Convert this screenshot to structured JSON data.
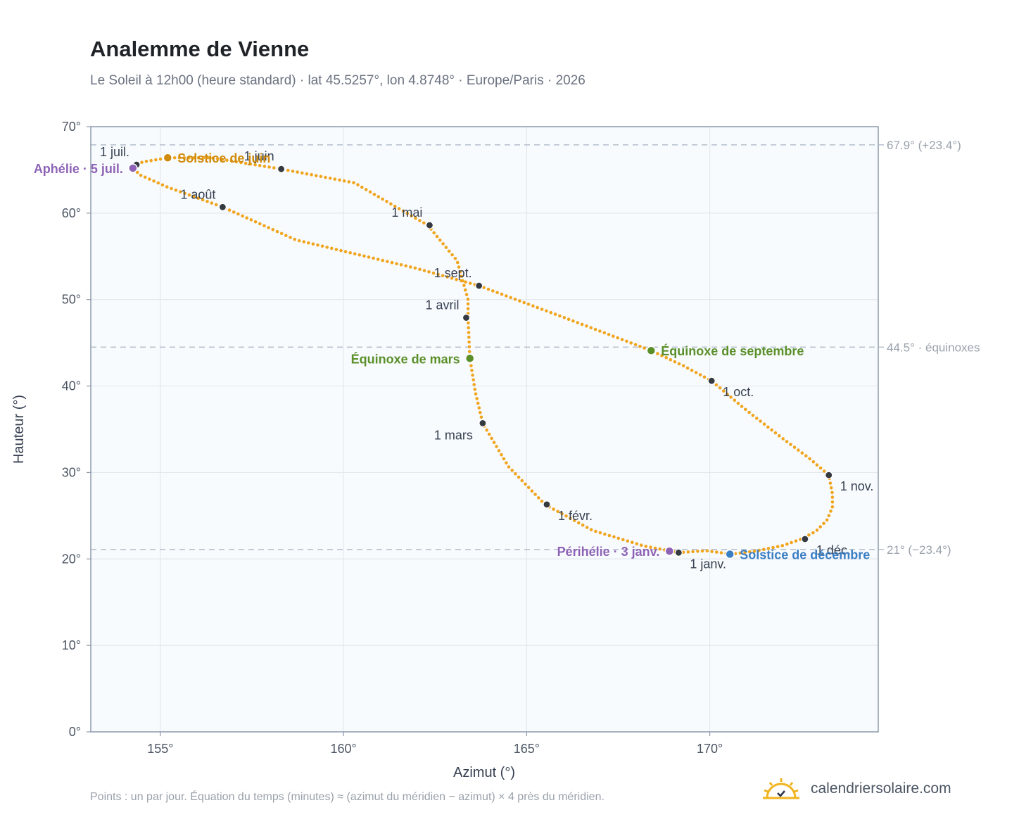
{
  "header": {
    "title": "Analemme de Vienne",
    "subtitle": "Le Soleil à 12h00 (heure standard) · lat 45.5257°, lon 4.8748° · Europe/Paris · 2026"
  },
  "footer": {
    "note": "Points : un par jour. Équation du temps (minutes) ≈ (azimut du méridien − azimut) × 4 près du méridien.",
    "brand": "calendriersolaire.com"
  },
  "colors": {
    "curve": "#f0a51e",
    "month_marker": "#343a40",
    "equinox": "#5a8f29",
    "june_solstice": "#d08b0c",
    "december_solstice": "#3a7ec4",
    "perihelion_aphelion": "#8e63b6",
    "plot_bg": "#f8fbfe",
    "grid": "#e3e8ee",
    "axis": "#8e9aab",
    "reference_line": "#b9c4d0"
  },
  "chart_data": {
    "type": "scatter",
    "xlabel": "Azimut (°)",
    "ylabel": "Hauteur (°)",
    "xlim": [
      153.1,
      174.6
    ],
    "ylim": [
      0,
      70
    ],
    "x_ticks": [
      155,
      160,
      165,
      170
    ],
    "x_tick_labels": [
      "155°",
      "160°",
      "165°",
      "170°"
    ],
    "y_ticks": [
      0,
      10,
      20,
      30,
      40,
      50,
      60,
      70
    ],
    "y_tick_labels": [
      "0°",
      "10°",
      "20°",
      "30°",
      "40°",
      "50°",
      "60°",
      "70°"
    ],
    "grid": true,
    "reference_lines": [
      {
        "y": 67.9,
        "label": "67.9° (+23.4°)"
      },
      {
        "y": 44.5,
        "label": "44.5° · équinoxes"
      },
      {
        "y": 21.1,
        "label": "21° (−23.4°)"
      }
    ],
    "series_path": [
      [
        169.15,
        20.73
      ],
      [
        169.9,
        20.95
      ],
      [
        170.6,
        20.55
      ],
      [
        171.3,
        20.95
      ],
      [
        172.0,
        21.55
      ],
      [
        172.5,
        22.3
      ],
      [
        172.9,
        23.2
      ],
      [
        173.2,
        24.5
      ],
      [
        173.35,
        26.0
      ],
      [
        173.35,
        27.5
      ],
      [
        173.25,
        29.7
      ],
      [
        172.7,
        31.7
      ],
      [
        172.0,
        33.9
      ],
      [
        171.0,
        37.2
      ],
      [
        170.05,
        40.6
      ],
      [
        169.3,
        42.3
      ],
      [
        168.4,
        44.1
      ],
      [
        166.1,
        47.8
      ],
      [
        163.7,
        51.6
      ],
      [
        162.0,
        53.6
      ],
      [
        158.7,
        56.9
      ],
      [
        156.7,
        60.7
      ],
      [
        155.2,
        63.0
      ],
      [
        154.4,
        64.5
      ],
      [
        154.3,
        65.3
      ],
      [
        154.5,
        65.9
      ],
      [
        155.2,
        66.4
      ],
      [
        156.4,
        66.4
      ],
      [
        158.3,
        65.1
      ],
      [
        160.3,
        63.5
      ],
      [
        162.3,
        58.6
      ],
      [
        163.1,
        54.5
      ],
      [
        163.4,
        50.0
      ],
      [
        163.4,
        47.9
      ],
      [
        163.45,
        43.2
      ],
      [
        163.6,
        39.3
      ],
      [
        163.8,
        35.7
      ],
      [
        164.5,
        30.7
      ],
      [
        165.5,
        26.3
      ],
      [
        166.8,
        23.3
      ],
      [
        168.2,
        21.5
      ],
      [
        169.15,
        20.73
      ]
    ],
    "month_markers": [
      {
        "label": "1 janv.",
        "x": 169.15,
        "y": 20.73,
        "anchor": "below-right"
      },
      {
        "label": "1 févr.",
        "x": 165.55,
        "y": 26.3,
        "anchor": "below-right"
      },
      {
        "label": "1 mars",
        "x": 163.8,
        "y": 35.7,
        "anchor": "below-left"
      },
      {
        "label": "1 avril",
        "x": 163.35,
        "y": 47.9,
        "anchor": "above-left"
      },
      {
        "label": "1 mai",
        "x": 162.35,
        "y": 58.6,
        "anchor": "above-left"
      },
      {
        "label": "1 juin",
        "x": 158.3,
        "y": 65.1,
        "anchor": "above-left"
      },
      {
        "label": "1 juil.",
        "x": 154.35,
        "y": 65.6,
        "anchor": "above-left"
      },
      {
        "label": "1 août",
        "x": 156.7,
        "y": 60.7,
        "anchor": "above-left"
      },
      {
        "label": "1 sept.",
        "x": 163.7,
        "y": 51.6,
        "anchor": "above-left"
      },
      {
        "label": "1 oct.",
        "x": 170.05,
        "y": 40.6,
        "anchor": "below-right"
      },
      {
        "label": "1 nov.",
        "x": 173.25,
        "y": 29.7,
        "anchor": "below-right"
      },
      {
        "label": "1 déc.",
        "x": 172.6,
        "y": 22.3,
        "anchor": "below-right"
      }
    ],
    "events": [
      {
        "label": "Solstice de juin",
        "x": 155.2,
        "y": 66.4,
        "color": "#d08b0c",
        "anchor": "right"
      },
      {
        "label": "Aphélie · 5 juil.",
        "x": 154.25,
        "y": 65.2,
        "color": "#8e63b6",
        "anchor": "left"
      },
      {
        "label": "Équinoxe de mars",
        "x": 163.45,
        "y": 43.2,
        "color": "#5a8f29",
        "anchor": "left"
      },
      {
        "label": "Équinoxe de septembre",
        "x": 168.4,
        "y": 44.1,
        "color": "#5a8f29",
        "anchor": "right"
      },
      {
        "label": "Périhélie · 3 janv.",
        "x": 168.9,
        "y": 20.9,
        "color": "#8e63b6",
        "anchor": "left"
      },
      {
        "label": "Solstice de décembre",
        "x": 170.55,
        "y": 20.55,
        "color": "#3a7ec4",
        "anchor": "right"
      }
    ]
  }
}
